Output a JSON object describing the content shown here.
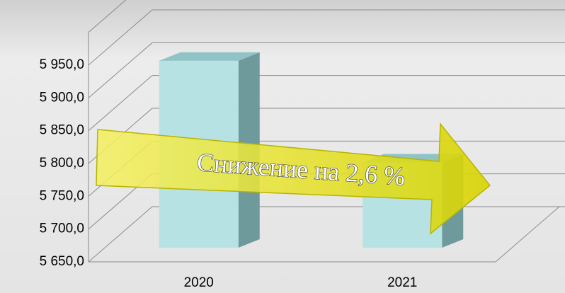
{
  "chart_data": {
    "type": "bar3d",
    "categories": [
      "2020",
      "2021"
    ],
    "values": [
      5935,
      5780
    ],
    "color": "#b7e2e4",
    "ylim": [
      5650,
      6000
    ],
    "yticks": [
      {
        "value": 5650,
        "label": "5 650,0"
      },
      {
        "value": 5700,
        "label": "5 700,0"
      },
      {
        "value": 5750,
        "label": "5 750,0"
      },
      {
        "value": 5800,
        "label": "5 800,0"
      },
      {
        "value": 5850,
        "label": "5 850,0"
      },
      {
        "value": 5900,
        "label": "5 900,0"
      },
      {
        "value": 5950,
        "label": "5 950,0"
      }
    ],
    "grid": true,
    "annotation": "Снижение на 2,6 %"
  }
}
